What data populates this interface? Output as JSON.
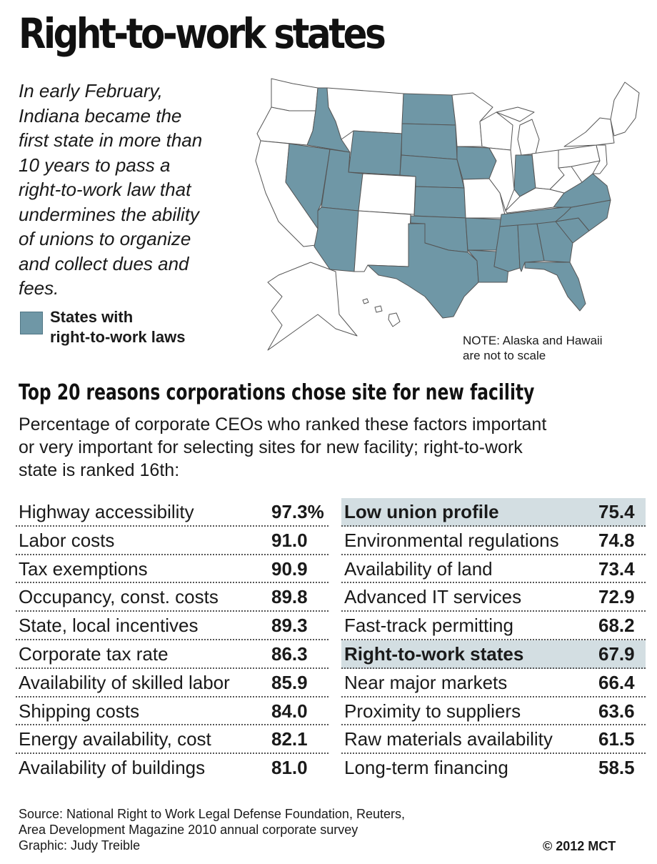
{
  "header": {
    "title": "Right-to-work states"
  },
  "intro": {
    "lines": [
      "In early February,",
      "Indiana became the",
      "first state in more than",
      "10 years to pass a",
      "right-to-work law that",
      "undermines the ability",
      "of unions to organize",
      "and collect dues and",
      "fees."
    ]
  },
  "legend": {
    "label_line1": "States with",
    "label_line2": "right-to-work laws",
    "color": "#6f97a6"
  },
  "map": {
    "right_to_work_color": "#6f97a6",
    "other_color": "#ffffff",
    "right_to_work_states": [
      "Idaho",
      "Nevada",
      "Utah",
      "Arizona",
      "Wyoming",
      "North Dakota",
      "South Dakota",
      "Nebraska",
      "Kansas",
      "Oklahoma",
      "Texas",
      "Iowa",
      "Arkansas",
      "Louisiana",
      "Mississippi",
      "Alabama",
      "Georgia",
      "Florida",
      "Tennessee",
      "South Carolina",
      "North Carolina",
      "Virginia",
      "Indiana"
    ],
    "note_line1": "NOTE: Alaska and Hawaii",
    "note_line2": "are not to scale"
  },
  "table": {
    "title": "Top 20 reasons corporations chose site for new facility",
    "subtitle_lines": [
      "Percentage of corporate CEOs who ranked these factors important",
      "or very important for selecting sites for new facility; right-to-work",
      "state is ranked 16th:"
    ],
    "left": [
      {
        "label": "Highway accessibility",
        "value": "97.3%"
      },
      {
        "label": "Labor costs",
        "value": "91.0"
      },
      {
        "label": "Tax exemptions",
        "value": "90.9"
      },
      {
        "label": "Occupancy, const. costs",
        "value": "89.8"
      },
      {
        "label": "State, local incentives",
        "value": "89.3"
      },
      {
        "label": "Corporate tax rate",
        "value": "86.3"
      },
      {
        "label": "Availability of skilled labor",
        "value": "85.9"
      },
      {
        "label": "Shipping costs",
        "value": "84.0"
      },
      {
        "label": "Energy availability, cost",
        "value": "82.1"
      },
      {
        "label": "Availability of buildings",
        "value": "81.0"
      }
    ],
    "right": [
      {
        "label": "Low union profile",
        "value": "75.4",
        "highlight": true
      },
      {
        "label": "Environmental regulations",
        "value": "74.8"
      },
      {
        "label": "Availability of land",
        "value": "73.4"
      },
      {
        "label": "Advanced IT services",
        "value": "72.9"
      },
      {
        "label": "Fast-track permitting",
        "value": "68.2"
      },
      {
        "label": "Right-to-work states",
        "value": "67.9",
        "highlight": true
      },
      {
        "label": "Near major markets",
        "value": "66.4"
      },
      {
        "label": "Proximity to suppliers",
        "value": "63.6"
      },
      {
        "label": "Raw materials availability",
        "value": "61.5"
      },
      {
        "label": "Long-term financing",
        "value": "58.5"
      }
    ],
    "highlight_color": "#d3dee2"
  },
  "footer": {
    "source_line1": "Source: National Right to Work Legal Defense Foundation, Reuters,",
    "source_line2": "Area Development Magazine 2010 annual corporate survey",
    "graphic_line": "Graphic: Judy Treible",
    "copyright": "© 2012 MCT"
  }
}
